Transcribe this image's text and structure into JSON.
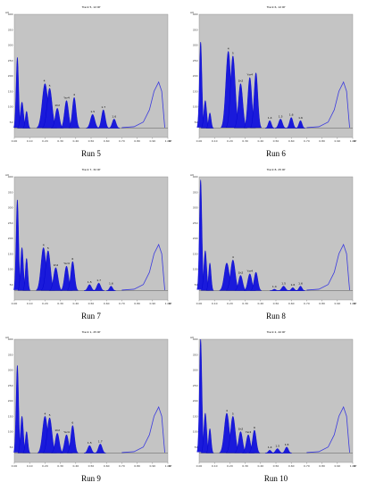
{
  "colors": {
    "plot_bg": "#c4c4c4",
    "peak_fill": "#1a1adb",
    "peak_line": "#0000cc",
    "curve": "#3a3adf",
    "baseline": "#444444"
  },
  "chart_data": [
    {
      "type": "area",
      "label": "Run 5",
      "header": "Track 5, 12 Rf",
      "xticks": [
        "0.00",
        "0.10",
        "0.20",
        "0.30",
        "0.40",
        "0.50",
        "0.60",
        "0.70",
        "0.80",
        "0.90",
        "1.00"
      ],
      "yticks": [
        "400",
        "350",
        "300",
        "250",
        "200",
        "150",
        "100",
        "50"
      ],
      "xlim": [
        0,
        1
      ],
      "ylim": [
        0,
        400
      ],
      "peaks": [
        [
          0.02,
          260,
          0.008
        ],
        [
          0.05,
          115,
          0.01
        ],
        [
          0.08,
          85,
          0.008
        ],
        [
          0.2,
          175,
          0.018
        ],
        [
          0.23,
          160,
          0.016
        ],
        [
          0.28,
          95,
          0.013
        ],
        [
          0.34,
          120,
          0.013
        ],
        [
          0.39,
          130,
          0.012
        ],
        [
          0.51,
          75,
          0.014
        ],
        [
          0.58,
          90,
          0.012
        ],
        [
          0.65,
          60,
          0.012
        ]
      ],
      "curve": [
        [
          0.7,
          32
        ],
        [
          0.78,
          35
        ],
        [
          0.84,
          50
        ],
        [
          0.88,
          90
        ],
        [
          0.91,
          150
        ],
        [
          0.94,
          180
        ],
        [
          0.96,
          150
        ],
        [
          0.975,
          60
        ],
        [
          0.98,
          32
        ]
      ],
      "peak_labels": [
        {
          "x": 0.195,
          "text": "4"
        },
        {
          "x": 0.23,
          "text": "5"
        },
        {
          "x": 0.28,
          "text": "1h2"
        },
        {
          "x": 0.34,
          "text": "Ysr4"
        },
        {
          "x": 0.39,
          "text": "4"
        },
        {
          "x": 0.51,
          "text": "1.5"
        },
        {
          "x": 0.58,
          "text": "1.7"
        },
        {
          "x": 0.65,
          "text": "1.6"
        }
      ]
    },
    {
      "type": "area",
      "label": "Run 6",
      "header": "Track 6, 12 Rf",
      "xticks": [
        "0.00",
        "0.10",
        "0.20",
        "0.30",
        "0.40",
        "0.50",
        "0.60",
        "0.70",
        "0.80",
        "0.90",
        "1.00"
      ],
      "yticks": [
        "400",
        "350",
        "300",
        "250",
        "200",
        "150",
        "100",
        "50"
      ],
      "xlim": [
        0,
        1
      ],
      "ylim": [
        0,
        400
      ],
      "peaks": [
        [
          0.01,
          310,
          0.008
        ],
        [
          0.04,
          120,
          0.009
        ],
        [
          0.07,
          80,
          0.008
        ],
        [
          0.19,
          280,
          0.016
        ],
        [
          0.22,
          265,
          0.015
        ],
        [
          0.27,
          175,
          0.014
        ],
        [
          0.33,
          195,
          0.013
        ],
        [
          0.37,
          210,
          0.012
        ],
        [
          0.46,
          55,
          0.01
        ],
        [
          0.53,
          60,
          0.012
        ],
        [
          0.6,
          65,
          0.011
        ],
        [
          0.66,
          55,
          0.01
        ]
      ],
      "curve": [
        [
          0.7,
          32
        ],
        [
          0.78,
          35
        ],
        [
          0.84,
          50
        ],
        [
          0.88,
          90
        ],
        [
          0.91,
          150
        ],
        [
          0.94,
          180
        ],
        [
          0.96,
          150
        ],
        [
          0.975,
          60
        ],
        [
          0.98,
          32
        ]
      ],
      "peak_labels": [
        {
          "x": 0.19,
          "text": "4"
        },
        {
          "x": 0.22,
          "text": "5"
        },
        {
          "x": 0.27,
          "text": "1h2"
        },
        {
          "x": 0.33,
          "text": "Ysr4"
        },
        {
          "x": 0.46,
          "text": "1.4"
        },
        {
          "x": 0.53,
          "text": "1.5"
        },
        {
          "x": 0.6,
          "text": "1.6"
        },
        {
          "x": 0.66,
          "text": "1.6"
        }
      ]
    },
    {
      "type": "area",
      "label": "Run 7",
      "header": "Track 7, 32 Rf",
      "xticks": [
        "0.00",
        "0.10",
        "0.20",
        "0.30",
        "0.40",
        "0.50",
        "0.60",
        "0.70",
        "0.80",
        "0.90",
        "1.00"
      ],
      "yticks": [
        "400",
        "350",
        "300",
        "250",
        "200",
        "150",
        "100",
        "50"
      ],
      "xlim": [
        0,
        1
      ],
      "ylim": [
        0,
        400
      ],
      "peaks": [
        [
          0.02,
          325,
          0.008
        ],
        [
          0.05,
          170,
          0.009
        ],
        [
          0.08,
          135,
          0.008
        ],
        [
          0.19,
          170,
          0.016
        ],
        [
          0.22,
          160,
          0.015
        ],
        [
          0.27,
          105,
          0.014
        ],
        [
          0.34,
          110,
          0.013
        ],
        [
          0.38,
          125,
          0.012
        ],
        [
          0.49,
          50,
          0.012
        ],
        [
          0.55,
          55,
          0.012
        ],
        [
          0.63,
          45,
          0.01
        ]
      ],
      "curve": [
        [
          0.7,
          32
        ],
        [
          0.78,
          35
        ],
        [
          0.84,
          50
        ],
        [
          0.88,
          90
        ],
        [
          0.91,
          150
        ],
        [
          0.94,
          180
        ],
        [
          0.96,
          150
        ],
        [
          0.975,
          60
        ],
        [
          0.98,
          32
        ]
      ],
      "peak_labels": [
        {
          "x": 0.19,
          "text": "4"
        },
        {
          "x": 0.22,
          "text": "5"
        },
        {
          "x": 0.27,
          "text": "1h2"
        },
        {
          "x": 0.34,
          "text": "Ysr4"
        },
        {
          "x": 0.38,
          "text": "6"
        },
        {
          "x": 0.49,
          "text": "1.5"
        },
        {
          "x": 0.55,
          "text": "1.7"
        },
        {
          "x": 0.63,
          "text": "1.6"
        }
      ]
    },
    {
      "type": "area",
      "label": "Run 8",
      "header": "Track 8, 25 Rf",
      "xticks": [
        "0.00",
        "0.10",
        "0.20",
        "0.30",
        "0.40",
        "0.50",
        "0.60",
        "0.70",
        "0.80",
        "0.90",
        "1.00"
      ],
      "yticks": [
        "400",
        "350",
        "300",
        "250",
        "200",
        "150",
        "100",
        "50"
      ],
      "xlim": [
        0,
        1
      ],
      "ylim": [
        0,
        400
      ],
      "peaks": [
        [
          0.01,
          390,
          0.008
        ],
        [
          0.04,
          160,
          0.009
        ],
        [
          0.07,
          120,
          0.008
        ],
        [
          0.18,
          120,
          0.016
        ],
        [
          0.22,
          130,
          0.015
        ],
        [
          0.27,
          80,
          0.013
        ],
        [
          0.33,
          85,
          0.013
        ],
        [
          0.37,
          90,
          0.012
        ],
        [
          0.49,
          35,
          0.01
        ],
        [
          0.55,
          45,
          0.012
        ],
        [
          0.61,
          40,
          0.01
        ],
        [
          0.66,
          45,
          0.01
        ]
      ],
      "curve": [
        [
          0.7,
          32
        ],
        [
          0.78,
          35
        ],
        [
          0.84,
          50
        ],
        [
          0.88,
          90
        ],
        [
          0.91,
          150
        ],
        [
          0.94,
          180
        ],
        [
          0.96,
          150
        ],
        [
          0.975,
          60
        ],
        [
          0.98,
          32
        ]
      ],
      "peak_labels": [
        {
          "x": 0.22,
          "text": "4"
        },
        {
          "x": 0.27,
          "text": "1h2"
        },
        {
          "x": 0.33,
          "text": "Ysr4"
        },
        {
          "x": 0.49,
          "text": "1.4"
        },
        {
          "x": 0.55,
          "text": "1.5"
        },
        {
          "x": 0.61,
          "text": "1.6"
        },
        {
          "x": 0.66,
          "text": "1.6"
        }
      ]
    },
    {
      "type": "area",
      "label": "Run 9",
      "header": "Track 1, 25 Rf",
      "xticks": [
        "0.00",
        "0.10",
        "0.20",
        "0.30",
        "0.40",
        "0.50",
        "0.60",
        "0.70",
        "0.80",
        "0.90",
        "1.00"
      ],
      "yticks": [
        "400",
        "350",
        "300",
        "250",
        "200",
        "150",
        "100",
        "50"
      ],
      "xlim": [
        0,
        1
      ],
      "ylim": [
        0,
        400
      ],
      "peaks": [
        [
          0.02,
          315,
          0.008
        ],
        [
          0.05,
          150,
          0.009
        ],
        [
          0.08,
          100,
          0.008
        ],
        [
          0.2,
          150,
          0.016
        ],
        [
          0.23,
          145,
          0.015
        ],
        [
          0.28,
          95,
          0.013
        ],
        [
          0.34,
          90,
          0.013
        ],
        [
          0.38,
          120,
          0.012
        ],
        [
          0.49,
          55,
          0.012
        ],
        [
          0.56,
          60,
          0.012
        ]
      ],
      "curve": [
        [
          0.7,
          32
        ],
        [
          0.78,
          35
        ],
        [
          0.84,
          50
        ],
        [
          0.88,
          90
        ],
        [
          0.91,
          150
        ],
        [
          0.94,
          180
        ],
        [
          0.96,
          150
        ],
        [
          0.975,
          60
        ],
        [
          0.98,
          32
        ]
      ],
      "peak_labels": [
        {
          "x": 0.2,
          "text": "4"
        },
        {
          "x": 0.23,
          "text": "5"
        },
        {
          "x": 0.28,
          "text": "1h2"
        },
        {
          "x": 0.34,
          "text": "Ysr4"
        },
        {
          "x": 0.38,
          "text": "6"
        },
        {
          "x": 0.49,
          "text": "1.5"
        },
        {
          "x": 0.56,
          "text": "1.7"
        }
      ]
    },
    {
      "type": "area",
      "label": "Run 10",
      "header": "Track 2, 42 Rf",
      "xticks": [
        "0.00",
        "0.10",
        "0.20",
        "0.30",
        "0.40",
        "0.50",
        "0.60",
        "0.70",
        "0.80",
        "0.90",
        "1.00"
      ],
      "yticks": [
        "400",
        "350",
        "300",
        "250",
        "200",
        "150",
        "100",
        "50"
      ],
      "xlim": [
        0,
        1
      ],
      "ylim": [
        0,
        400
      ],
      "peaks": [
        [
          0.01,
          400,
          0.008
        ],
        [
          0.04,
          160,
          0.009
        ],
        [
          0.07,
          110,
          0.008
        ],
        [
          0.18,
          160,
          0.016
        ],
        [
          0.22,
          150,
          0.015
        ],
        [
          0.27,
          100,
          0.013
        ],
        [
          0.32,
          90,
          0.013
        ],
        [
          0.36,
          105,
          0.012
        ],
        [
          0.46,
          40,
          0.01
        ],
        [
          0.51,
          45,
          0.012
        ],
        [
          0.57,
          50,
          0.011
        ]
      ],
      "curve": [
        [
          0.7,
          32
        ],
        [
          0.78,
          35
        ],
        [
          0.84,
          50
        ],
        [
          0.88,
          90
        ],
        [
          0.91,
          150
        ],
        [
          0.94,
          180
        ],
        [
          0.96,
          150
        ],
        [
          0.975,
          60
        ],
        [
          0.98,
          32
        ]
      ],
      "peak_labels": [
        {
          "x": 0.18,
          "text": "4"
        },
        {
          "x": 0.22,
          "text": "5"
        },
        {
          "x": 0.27,
          "text": "1h2"
        },
        {
          "x": 0.32,
          "text": "Ysr4"
        },
        {
          "x": 0.36,
          "text": "6"
        },
        {
          "x": 0.46,
          "text": "1.4"
        },
        {
          "x": 0.51,
          "text": "1.5"
        },
        {
          "x": 0.57,
          "text": "1.6"
        }
      ]
    }
  ]
}
